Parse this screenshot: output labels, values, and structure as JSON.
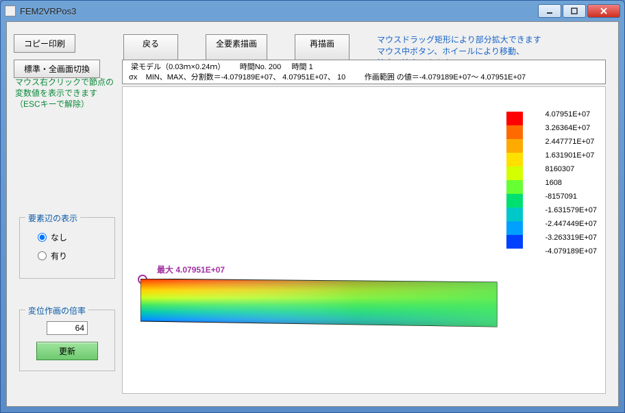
{
  "window": {
    "title": "FEM2VRPos3"
  },
  "toolbar": {
    "copy_print": "コピー印刷",
    "back": "戻る",
    "draw_all": "全要素描画",
    "redraw": "再描画",
    "std_fullscreen": "標準・全画面切換"
  },
  "help": {
    "line1": "マウスドラッグ矩形により部分拡大できます",
    "line2": "マウス中ボタン、ホイールにより移動、",
    "line3": "拡大・縮小できます"
  },
  "info": {
    "line1": "  梁モデル（0.03ｍ×0.24ｍ）       時間No. 200     時間 1",
    "line2": " σx    MIN、MAX、分割数＝-4.079189E+07、 4.07951E+07、 10         作画範囲 の値＝-4.079189E+07～ 4.07951E+07"
  },
  "hint": {
    "line1": "マウス右クリックで節点の",
    "line2": "変数値を表示できます",
    "line3": "（ESCキーで解除）"
  },
  "edges_group": {
    "title": "要素辺の表示",
    "none": "なし",
    "show": "有り",
    "value": "none"
  },
  "scale_group": {
    "title": "変位作画の倍率",
    "value": "64",
    "update": "更新"
  },
  "contour": {
    "max_label": "最大  4.07951E+07",
    "legend_labels": [
      "4.07951E+07",
      "3.26364E+07",
      "2.447771E+07",
      "1.631901E+07",
      "8160307",
      "1608",
      "-8157091",
      "-1.631579E+07",
      "-2.447449E+07",
      "-3.263319E+07",
      "-4.079189E+07"
    ],
    "legend_colors": [
      "#ff0000",
      "#ff6a00",
      "#ffaa00",
      "#ffe000",
      "#d4ff00",
      "#66ff33",
      "#00e070",
      "#00c8c8",
      "#00a0ff",
      "#0040ff"
    ],
    "background": "#ffffff"
  },
  "icons": {
    "app": "app-icon",
    "min": "minimize-icon",
    "max": "maximize-icon",
    "close": "close-icon"
  }
}
